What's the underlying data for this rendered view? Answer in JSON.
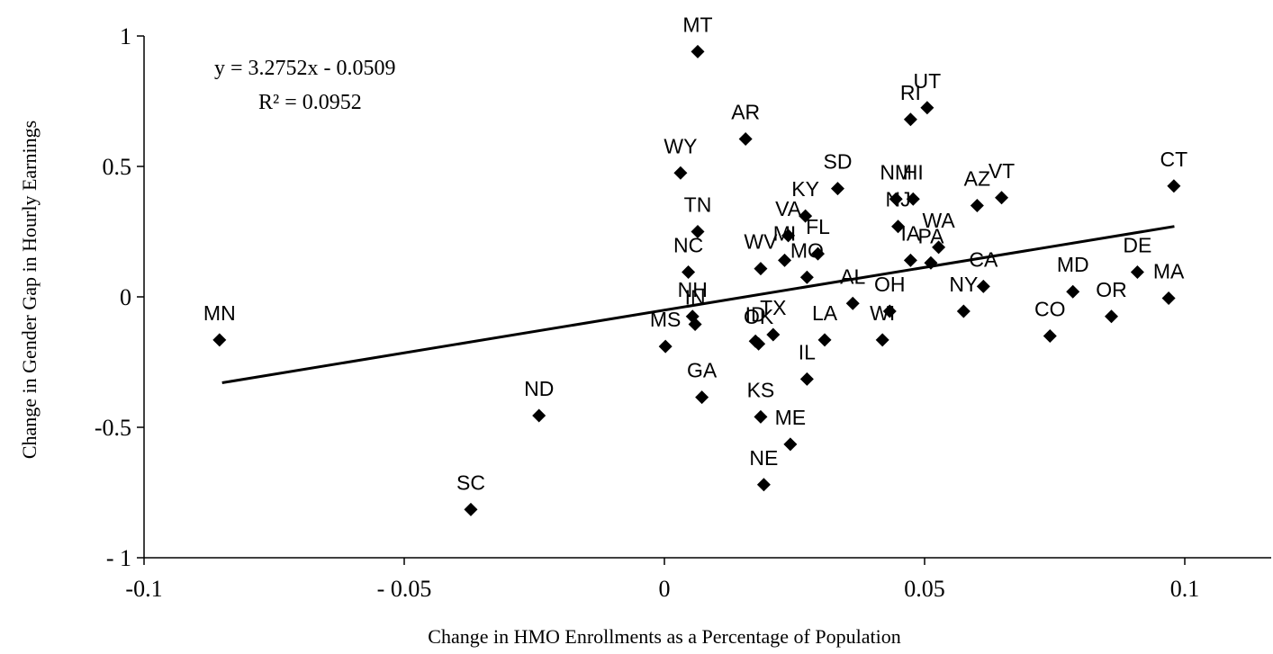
{
  "chart_data": {
    "type": "scatter",
    "title": "",
    "xlabel": "Change in HMO Enrollments as a Percentage of Population",
    "ylabel": "Change in Gender Gap in Hourly Earnings",
    "xlim": [
      -0.1,
      0.1
    ],
    "ylim": [
      -1,
      1
    ],
    "xticks": [
      -0.1,
      -0.05,
      0,
      0.05,
      0.1
    ],
    "xtick_labels": [
      "-0.1",
      "- 0.05",
      "0",
      "0.05",
      "0.1"
    ],
    "yticks": [
      -1,
      -0.5,
      0,
      0.5,
      1
    ],
    "ytick_labels": [
      "- 1",
      "-0.5",
      "0",
      "0.5",
      "1"
    ],
    "grid": false,
    "legend": "none",
    "marker": "diamond",
    "marker_color": "#000000",
    "trendline": {
      "equation": "y = 3.2752x - 0.0509",
      "r_squared": "R² = 0.0952",
      "slope": 3.2752,
      "intercept": -0.0509,
      "x_range": [
        -0.085,
        0.098
      ]
    },
    "points": [
      {
        "label": "MN",
        "x": -0.0855,
        "y": -0.165
      },
      {
        "label": "SC",
        "x": -0.0372,
        "y": -0.815
      },
      {
        "label": "ND",
        "x": -0.0241,
        "y": -0.455
      },
      {
        "label": "MS",
        "x": 0.0002,
        "y": -0.19
      },
      {
        "label": "WY",
        "x": 0.0031,
        "y": 0.475
      },
      {
        "label": "NC",
        "x": 0.0046,
        "y": 0.095
      },
      {
        "label": "NH",
        "x": 0.0054,
        "y": -0.075
      },
      {
        "label": "IN",
        "x": 0.0059,
        "y": -0.105
      },
      {
        "label": "TN",
        "x": 0.0064,
        "y": 0.25
      },
      {
        "label": "MT",
        "x": 0.0064,
        "y": 0.94
      },
      {
        "label": "GA",
        "x": 0.0072,
        "y": -0.385
      },
      {
        "label": "AR",
        "x": 0.0156,
        "y": 0.605
      },
      {
        "label": "ID",
        "x": 0.0175,
        "y": -0.17
      },
      {
        "label": "OK",
        "x": 0.0181,
        "y": -0.18
      },
      {
        "label": "WV",
        "x": 0.0185,
        "y": 0.108
      },
      {
        "label": "KS",
        "x": 0.0185,
        "y": -0.46
      },
      {
        "label": "NE",
        "x": 0.0191,
        "y": -0.72
      },
      {
        "label": "TX",
        "x": 0.0209,
        "y": -0.145
      },
      {
        "label": "MI",
        "x": 0.0231,
        "y": 0.14
      },
      {
        "label": "VA",
        "x": 0.0238,
        "y": 0.235
      },
      {
        "label": "ME",
        "x": 0.0242,
        "y": -0.565
      },
      {
        "label": "KY",
        "x": 0.0271,
        "y": 0.31
      },
      {
        "label": "MO",
        "x": 0.0274,
        "y": 0.075
      },
      {
        "label": "IL",
        "x": 0.0274,
        "y": -0.315
      },
      {
        "label": "FL",
        "x": 0.0295,
        "y": 0.165
      },
      {
        "label": "LA",
        "x": 0.0308,
        "y": -0.165
      },
      {
        "label": "SD",
        "x": 0.0333,
        "y": 0.415
      },
      {
        "label": "AL",
        "x": 0.0362,
        "y": -0.025
      },
      {
        "label": "WI",
        "x": 0.0419,
        "y": -0.165
      },
      {
        "label": "OH",
        "x": 0.0433,
        "y": -0.055
      },
      {
        "label": "NM",
        "x": 0.0445,
        "y": 0.375
      },
      {
        "label": "NJ",
        "x": 0.0449,
        "y": 0.27
      },
      {
        "label": "IA",
        "x": 0.0473,
        "y": 0.14
      },
      {
        "label": "RI",
        "x": 0.0473,
        "y": 0.68
      },
      {
        "label": "HI",
        "x": 0.0478,
        "y": 0.375
      },
      {
        "label": "UT",
        "x": 0.0505,
        "y": 0.725
      },
      {
        "label": "PA",
        "x": 0.0512,
        "y": 0.13
      },
      {
        "label": "WA",
        "x": 0.0527,
        "y": 0.19
      },
      {
        "label": "NY",
        "x": 0.0575,
        "y": -0.055
      },
      {
        "label": "AZ",
        "x": 0.0601,
        "y": 0.35
      },
      {
        "label": "CA",
        "x": 0.0613,
        "y": 0.04
      },
      {
        "label": "VT",
        "x": 0.0648,
        "y": 0.38
      },
      {
        "label": "CO",
        "x": 0.0741,
        "y": -0.15
      },
      {
        "label": "MD",
        "x": 0.0785,
        "y": 0.02
      },
      {
        "label": "OR",
        "x": 0.0859,
        "y": -0.075
      },
      {
        "label": "DE",
        "x": 0.0909,
        "y": 0.095
      },
      {
        "label": "MA",
        "x": 0.0969,
        "y": -0.005
      },
      {
        "label": "CT",
        "x": 0.0979,
        "y": 0.425
      }
    ]
  }
}
